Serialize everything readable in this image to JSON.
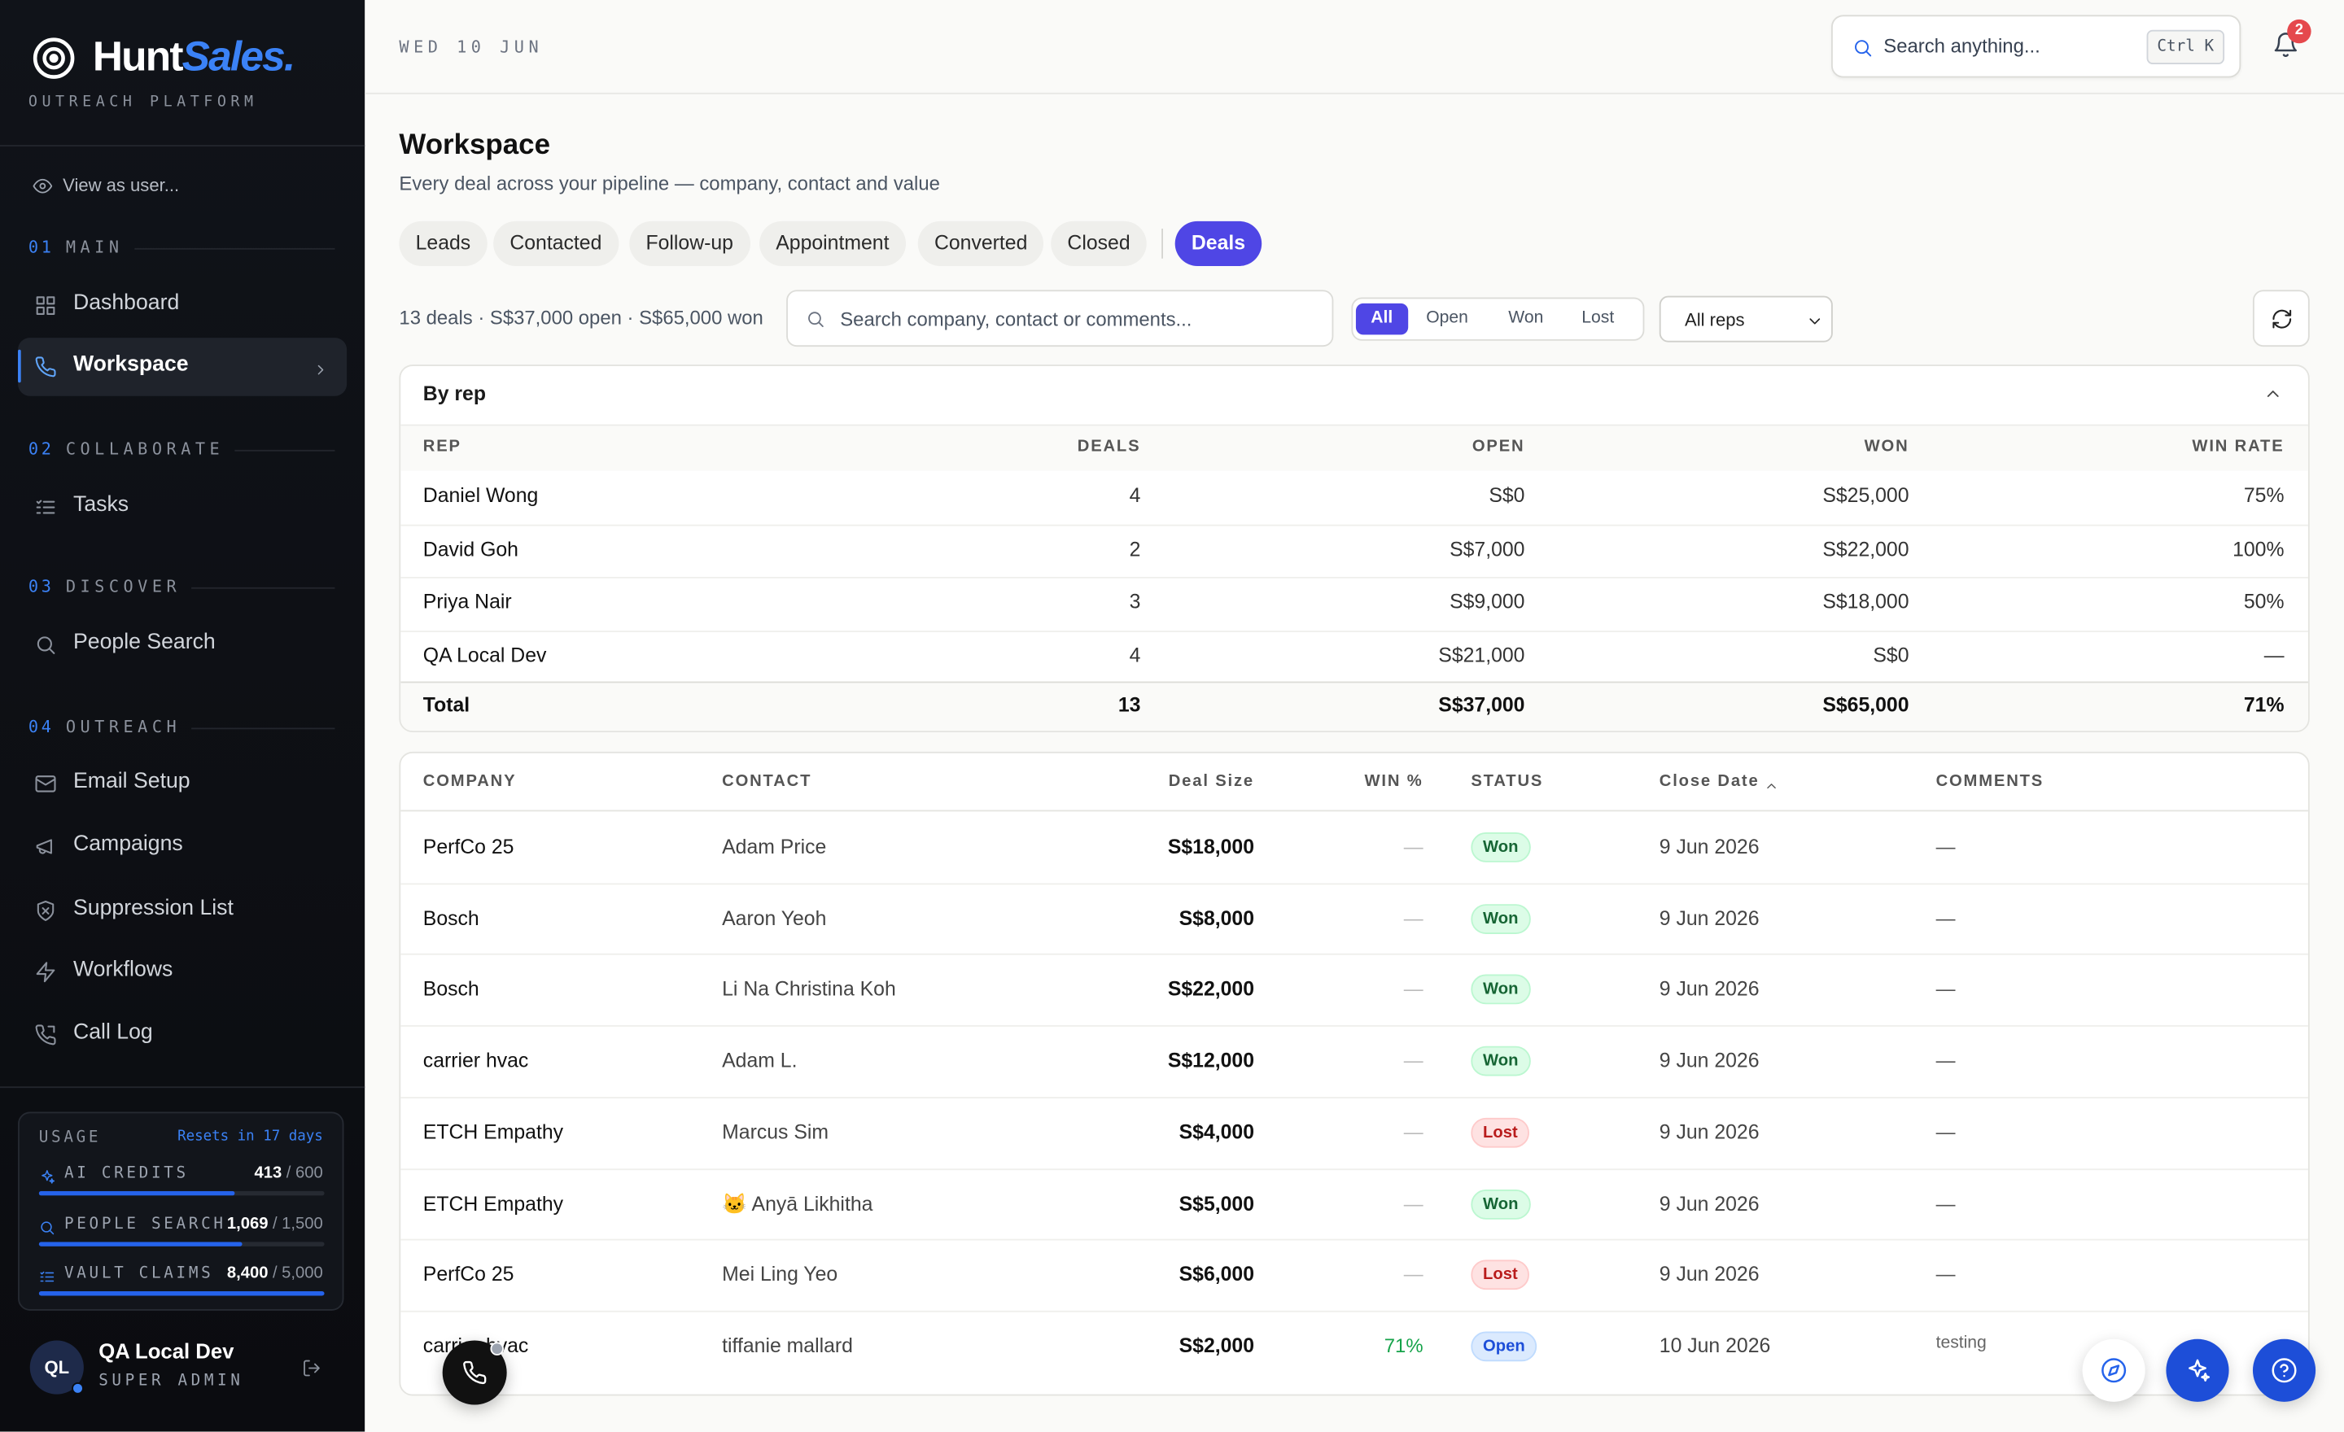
{
  "sidebar": {
    "brand": {
      "name": "Hunt",
      "accent": "Sales.",
      "tagline": "OUTREACH PLATFORM"
    },
    "view_as": "View as user...",
    "sections": [
      {
        "number": "01",
        "label": "MAIN",
        "items": [
          "Dashboard",
          "Workspace"
        ]
      },
      {
        "number": "02",
        "label": "COLLABORATE",
        "items": [
          "Tasks"
        ]
      },
      {
        "number": "03",
        "label": "DISCOVER",
        "items": [
          "People Search"
        ]
      },
      {
        "number": "04",
        "label": "OUTREACH",
        "items": [
          "Email Setup",
          "Campaigns",
          "Suppression List",
          "Workflows",
          "Call Log"
        ]
      }
    ],
    "usage": {
      "label": "USAGE",
      "resets": "Resets in 17 days",
      "meters": [
        {
          "name": "AI CREDITS",
          "used": {
            "value": 413,
            "label": "413"
          },
          "limit": {
            "value": 600,
            "label": "/ 600"
          }
        },
        {
          "name": "PEOPLE SEARCH",
          "used": {
            "value": 1069,
            "label": "1,069"
          },
          "limit": {
            "value": 1500,
            "label": "/ 1,500"
          }
        },
        {
          "name": "VAULT CLAIMS",
          "used": {
            "value": 8400,
            "label": "8,400"
          },
          "limit": {
            "value": 5000,
            "label": "/ 5,000"
          }
        }
      ]
    },
    "user": {
      "initials": "QL",
      "name": "QA Local Dev",
      "role": "SUPER ADMIN"
    }
  },
  "topbar": {
    "date": "WED 10 JUN",
    "search": "Search anything...",
    "shortcut": "Ctrl K",
    "notifications": "2"
  },
  "page": {
    "title": "Workspace",
    "subtitle": "Every deal across your pipeline — company, contact and value",
    "tabs": [
      "Leads",
      "Contacted",
      "Follow-up",
      "Appointment",
      "Converted",
      "Closed",
      "Deals"
    ],
    "summary": "13 deals · S$37,000 open · S$65,000 won",
    "filter_search": "Search company, contact or comments...",
    "status_filters": [
      "All",
      "Open",
      "Won",
      "Lost"
    ],
    "rep_select": "All reps"
  },
  "by_rep": {
    "title": "By rep",
    "columns": [
      "REP",
      "DEALS",
      "OPEN",
      "WON",
      "WIN RATE"
    ],
    "rows": [
      [
        "Daniel Wong",
        "4",
        "S$0",
        "S$25,000",
        "75%"
      ],
      [
        "David Goh",
        "2",
        "S$7,000",
        "S$22,000",
        "100%"
      ],
      [
        "Priya Nair",
        "3",
        "S$9,000",
        "S$18,000",
        "50%"
      ],
      [
        "QA Local Dev",
        "4",
        "S$21,000",
        "S$0",
        "—"
      ]
    ],
    "total": [
      "Total",
      "13",
      "S$37,000",
      "S$65,000",
      "71%"
    ]
  },
  "deals": {
    "columns": [
      "COMPANY",
      "CONTACT",
      "Deal Size",
      "WIN %",
      "STATUS",
      "Close Date",
      "COMMENTS"
    ],
    "rows": [
      [
        "PerfCo 25",
        "Adam Price",
        "S$18,000",
        "—",
        "Won",
        "9 Jun 2026",
        "—"
      ],
      [
        "Bosch",
        "Aaron Yeoh",
        "S$8,000",
        "—",
        "Won",
        "9 Jun 2026",
        "—"
      ],
      [
        "Bosch",
        "Li Na Christina Koh",
        "S$22,000",
        "—",
        "Won",
        "9 Jun 2026",
        "—"
      ],
      [
        "carrier hvac",
        "Adam L.",
        "S$12,000",
        "—",
        "Won",
        "9 Jun 2026",
        "—"
      ],
      [
        "ETCH Empathy",
        "Marcus Sim",
        "S$4,000",
        "—",
        "Lost",
        "9 Jun 2026",
        "—"
      ],
      [
        "ETCH Empathy",
        "🐱 Anyā Likhitha",
        "S$5,000",
        "—",
        "Won",
        "9 Jun 2026",
        "—"
      ],
      [
        "PerfCo 25",
        "Mei Ling Yeo",
        "S$6,000",
        "—",
        "Lost",
        "9 Jun 2026",
        "—"
      ],
      [
        "carrier hvac",
        "tiffanie mallard",
        "S$2,000",
        "71%",
        "Open",
        "10 Jun 2026",
        "testing"
      ]
    ]
  }
}
